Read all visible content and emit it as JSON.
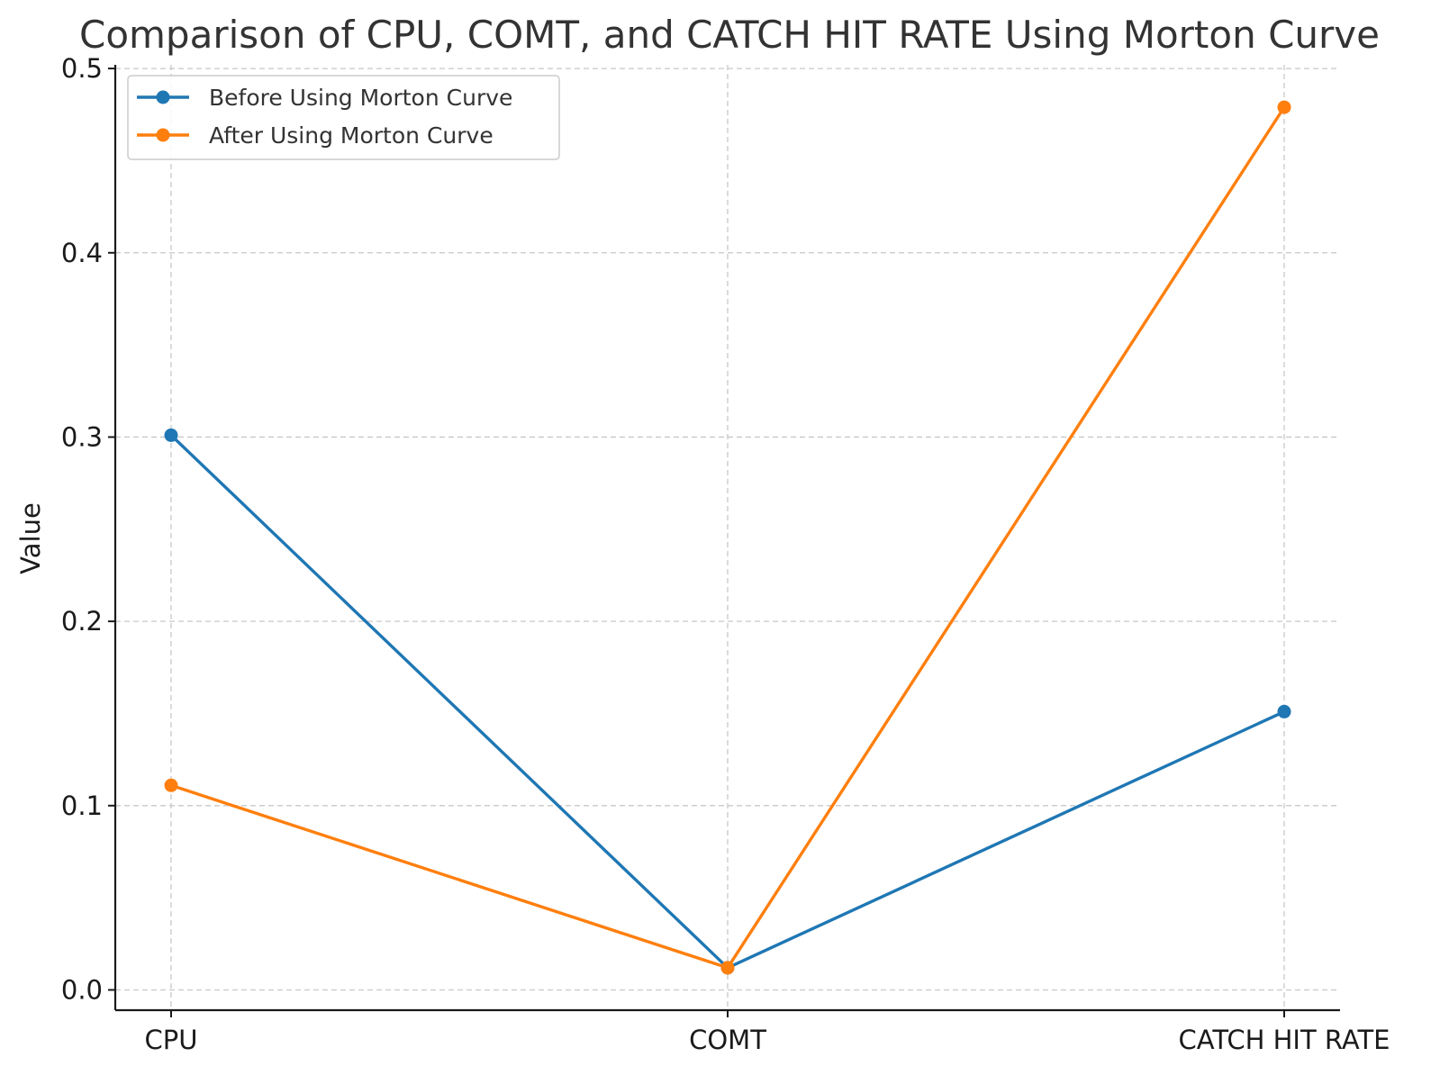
{
  "chart_data": {
    "type": "line",
    "title": "Comparison of CPU, COMT, and CATCH HIT RATE Using Morton Curve",
    "xlabel": "",
    "ylabel": "Value",
    "categories": [
      "CPU",
      "COMT",
      "CATCH HIT RATE"
    ],
    "ylim": [
      -0.011,
      0.502
    ],
    "yticks": [
      "0.0",
      "0.1",
      "0.2",
      "0.3",
      "0.4",
      "0.5"
    ],
    "grid": true,
    "legend_position": "top-left",
    "series": [
      {
        "name": "Before Using Morton Curve",
        "values": [
          0.301,
          0.012,
          0.151
        ],
        "color": "#1f77b4",
        "marker": "circle"
      },
      {
        "name": "After Using Morton Curve",
        "values": [
          0.111,
          0.012,
          0.479
        ],
        "color": "#ff7f0e",
        "marker": "circle"
      }
    ]
  }
}
